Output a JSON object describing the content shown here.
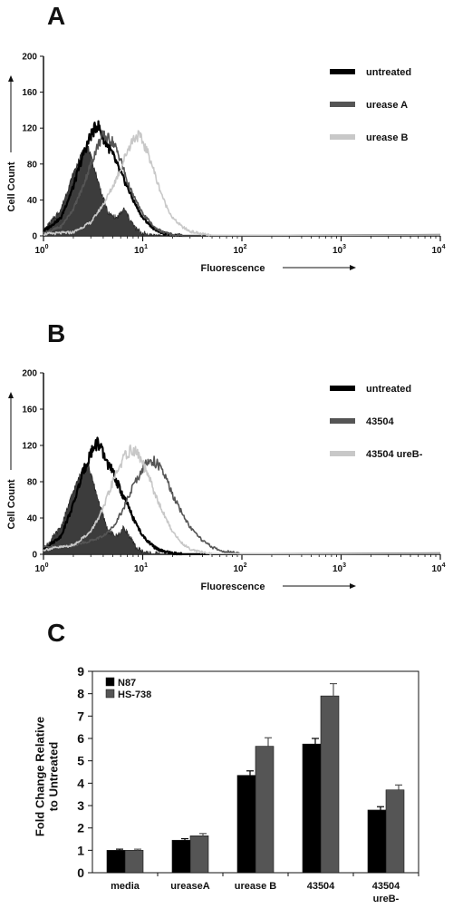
{
  "chart_data": [
    {
      "panel": "A",
      "type": "area",
      "xlabel": "Fluorescence",
      "ylabel": "Cell Count",
      "x_scale": "log",
      "xlim": [
        1,
        10000
      ],
      "ylim": [
        0,
        200
      ],
      "x_ticks": [
        {
          "base": "10",
          "exp": "0"
        },
        {
          "base": "10",
          "exp": "1"
        },
        {
          "base": "10",
          "exp": "2"
        },
        {
          "base": "10",
          "exp": "3"
        },
        {
          "base": "10",
          "exp": "4"
        }
      ],
      "y_ticks": [
        "0",
        "40",
        "80",
        "120",
        "160",
        "200"
      ],
      "legend_position": "top-right",
      "background": {
        "x": [
          1,
          1.5,
          2,
          2.5,
          2.8,
          3.2,
          3.8,
          4.5,
          5.5,
          6.5,
          7.5,
          8.5,
          10,
          12,
          15
        ],
        "y": [
          5,
          30,
          70,
          95,
          100,
          78,
          50,
          25,
          20,
          30,
          18,
          8,
          3,
          1,
          0
        ]
      },
      "series": [
        {
          "name": "untreated",
          "color": "#000000",
          "x": [
            1,
            1.5,
            2,
            2.5,
            3,
            3.5,
            4,
            5,
            6,
            7,
            8,
            10,
            13,
            16,
            20,
            25
          ],
          "y": [
            5,
            20,
            55,
            90,
            112,
            124,
            110,
            90,
            70,
            55,
            40,
            20,
            8,
            3,
            1,
            0
          ]
        },
        {
          "name": "urease A",
          "color": "#555555",
          "x": [
            1,
            1.5,
            2,
            2.5,
            3,
            3.5,
            4,
            5,
            6,
            7,
            8,
            10,
            13,
            16,
            20,
            25
          ],
          "y": [
            3,
            10,
            30,
            55,
            80,
            100,
            112,
            105,
            85,
            60,
            45,
            25,
            10,
            4,
            1,
            0
          ]
        },
        {
          "name": "urease B",
          "color": "#c8c8c8",
          "x": [
            1,
            2,
            3,
            4,
            5,
            6,
            7,
            8,
            9,
            10,
            12,
            14,
            17,
            20,
            25,
            30,
            40,
            50
          ],
          "y": [
            2,
            4,
            15,
            35,
            55,
            75,
            95,
            108,
            112,
            105,
            85,
            60,
            35,
            20,
            10,
            5,
            2,
            0
          ]
        }
      ]
    },
    {
      "panel": "B",
      "type": "area",
      "xlabel": "Fluorescence",
      "ylabel": "Cell Count",
      "x_scale": "log",
      "xlim": [
        1,
        10000
      ],
      "ylim": [
        0,
        200
      ],
      "x_ticks": [
        {
          "base": "10",
          "exp": "0"
        },
        {
          "base": "10",
          "exp": "1"
        },
        {
          "base": "10",
          "exp": "2"
        },
        {
          "base": "10",
          "exp": "3"
        },
        {
          "base": "10",
          "exp": "4"
        }
      ],
      "y_ticks": [
        "0",
        "40",
        "80",
        "120",
        "160",
        "200"
      ],
      "legend_position": "top-right",
      "background": {
        "x": [
          1,
          1.5,
          2,
          2.5,
          2.8,
          3.2,
          3.8,
          4.5,
          5.5,
          6.5,
          7.5,
          8.5,
          10,
          12,
          15
        ],
        "y": [
          5,
          30,
          70,
          95,
          100,
          78,
          50,
          25,
          20,
          30,
          18,
          8,
          3,
          1,
          0
        ]
      },
      "series": [
        {
          "name": "untreated",
          "color": "#000000",
          "x": [
            1,
            1.5,
            2,
            2.5,
            3,
            3.5,
            4,
            5,
            6,
            7,
            8,
            10,
            13,
            16,
            20,
            25
          ],
          "y": [
            5,
            20,
            55,
            90,
            112,
            124,
            110,
            90,
            70,
            55,
            40,
            20,
            8,
            3,
            1,
            0
          ]
        },
        {
          "name": "43504",
          "color": "#555555",
          "x": [
            1,
            2,
            3,
            4,
            5,
            6,
            7,
            8,
            10,
            12,
            14,
            17,
            20,
            25,
            30,
            40,
            50,
            60,
            80,
            100
          ],
          "y": [
            8,
            10,
            15,
            20,
            30,
            45,
            60,
            75,
            95,
            105,
            100,
            85,
            65,
            45,
            30,
            15,
            8,
            4,
            2,
            0
          ]
        },
        {
          "name": "43504 ureB-",
          "color": "#c8c8c8",
          "x": [
            1,
            2,
            3,
            4,
            5,
            6,
            7,
            8,
            9,
            10,
            12,
            14,
            17,
            20,
            25,
            30,
            40,
            50
          ],
          "y": [
            5,
            10,
            25,
            50,
            80,
            100,
            112,
            115,
            110,
            100,
            80,
            60,
            40,
            25,
            12,
            6,
            2,
            0
          ]
        }
      ]
    },
    {
      "panel": "C",
      "type": "bar",
      "ylabel": "Fold Change Relative to Untreated",
      "ylabel_lines": [
        "Fold Change Relative",
        "to Untreated"
      ],
      "ylim": [
        0,
        9
      ],
      "y_ticks": [
        "0",
        "1",
        "2",
        "3",
        "4",
        "5",
        "6",
        "7",
        "8",
        "9"
      ],
      "legend_position": "top-left",
      "categories": [
        [
          "media"
        ],
        [
          "ureaseA"
        ],
        [
          "urease B"
        ],
        [
          "43504"
        ],
        [
          "43504",
          "ureB-"
        ]
      ],
      "series": [
        {
          "name": "N87",
          "color": "#000000",
          "values": [
            1.0,
            1.45,
            4.35,
            5.75,
            2.8
          ],
          "errors": [
            0.05,
            0.07,
            0.2,
            0.25,
            0.15
          ]
        },
        {
          "name": "HS-738",
          "color": "#555555",
          "values": [
            1.0,
            1.65,
            5.65,
            7.9,
            3.7
          ],
          "errors": [
            0.05,
            0.1,
            0.38,
            0.55,
            0.22
          ]
        }
      ]
    }
  ]
}
